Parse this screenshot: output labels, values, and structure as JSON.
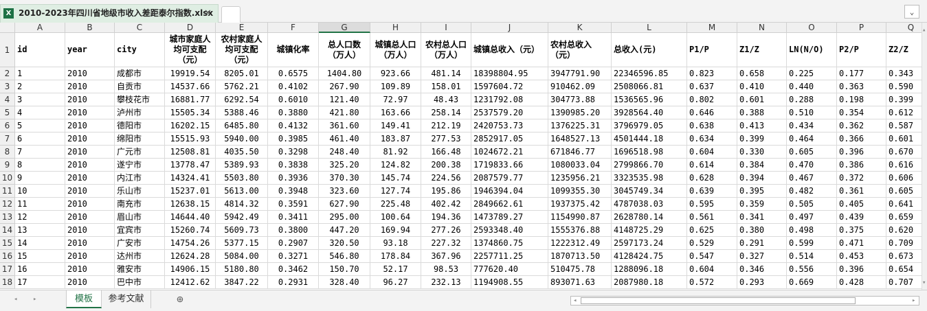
{
  "window": {
    "file_tab": "2010-2023年四川省地级市收入差距泰尔指数.xlsx",
    "file_icon": "X"
  },
  "grid": {
    "columns": [
      "A",
      "B",
      "C",
      "D",
      "E",
      "F",
      "G",
      "H",
      "I",
      "J",
      "K",
      "L",
      "M",
      "N",
      "O",
      "P",
      "Q"
    ],
    "row_numbers": [
      "1",
      "2",
      "3",
      "4",
      "5",
      "6",
      "7",
      "8",
      "9",
      "10",
      "11",
      "12",
      "13",
      "14",
      "15",
      "16",
      "17",
      "18"
    ],
    "header": [
      "id",
      "year",
      "city",
      "城市家庭人均可支配（元）",
      "农村家庭人均可支配（元）",
      "城镇化率",
      "总人口数（万人）",
      "城镇总人口（万人）",
      "农村总人口（万人）",
      "城镇总收入（元）",
      "农村总收入（元）",
      "总收入(元)",
      "P1/P",
      "Z1/Z",
      "LN(N/O)",
      "P2/P",
      "Z2/Z"
    ],
    "rows": [
      [
        "1",
        "2010",
        "成都市",
        "19919.54",
        "8205.01",
        "0.6575",
        "1404.80",
        "923.66",
        "481.14",
        "18398804.95",
        "3947791.90",
        "22346596.85",
        "0.823",
        "0.658",
        "0.225",
        "0.177",
        "0.343"
      ],
      [
        "2",
        "2010",
        "自贡市",
        "14537.66",
        "5762.21",
        "0.4102",
        "267.90",
        "109.89",
        "158.01",
        "1597604.72",
        "910462.09",
        "2508066.81",
        "0.637",
        "0.410",
        "0.440",
        "0.363",
        "0.590"
      ],
      [
        "3",
        "2010",
        "攀枝花市",
        "16881.77",
        "6292.54",
        "0.6010",
        "121.40",
        "72.97",
        "48.43",
        "1231792.08",
        "304773.88",
        "1536565.96",
        "0.802",
        "0.601",
        "0.288",
        "0.198",
        "0.399"
      ],
      [
        "4",
        "2010",
        "泸州市",
        "15505.34",
        "5388.46",
        "0.3880",
        "421.80",
        "163.66",
        "258.14",
        "2537579.20",
        "1390985.20",
        "3928564.40",
        "0.646",
        "0.388",
        "0.510",
        "0.354",
        "0.612"
      ],
      [
        "5",
        "2010",
        "德阳市",
        "16202.15",
        "6485.80",
        "0.4132",
        "361.60",
        "149.41",
        "212.19",
        "2420753.73",
        "1376225.31",
        "3796979.05",
        "0.638",
        "0.413",
        "0.434",
        "0.362",
        "0.587"
      ],
      [
        "6",
        "2010",
        "绵阳市",
        "15515.93",
        "5940.00",
        "0.3985",
        "461.40",
        "183.87",
        "277.53",
        "2852917.05",
        "1648527.13",
        "4501444.18",
        "0.634",
        "0.399",
        "0.464",
        "0.366",
        "0.601"
      ],
      [
        "7",
        "2010",
        "广元市",
        "12508.81",
        "4035.50",
        "0.3298",
        "248.40",
        "81.92",
        "166.48",
        "1024672.21",
        "671846.77",
        "1696518.98",
        "0.604",
        "0.330",
        "0.605",
        "0.396",
        "0.670"
      ],
      [
        "8",
        "2010",
        "遂宁市",
        "13778.47",
        "5389.93",
        "0.3838",
        "325.20",
        "124.82",
        "200.38",
        "1719833.66",
        "1080033.04",
        "2799866.70",
        "0.614",
        "0.384",
        "0.470",
        "0.386",
        "0.616"
      ],
      [
        "9",
        "2010",
        "内江市",
        "14324.41",
        "5503.80",
        "0.3936",
        "370.30",
        "145.74",
        "224.56",
        "2087579.77",
        "1235956.21",
        "3323535.98",
        "0.628",
        "0.394",
        "0.467",
        "0.372",
        "0.606"
      ],
      [
        "10",
        "2010",
        "乐山市",
        "15237.01",
        "5613.00",
        "0.3948",
        "323.60",
        "127.74",
        "195.86",
        "1946394.04",
        "1099355.30",
        "3045749.34",
        "0.639",
        "0.395",
        "0.482",
        "0.361",
        "0.605"
      ],
      [
        "11",
        "2010",
        "南充市",
        "12638.15",
        "4814.32",
        "0.3591",
        "627.90",
        "225.48",
        "402.42",
        "2849662.61",
        "1937375.42",
        "4787038.03",
        "0.595",
        "0.359",
        "0.505",
        "0.405",
        "0.641"
      ],
      [
        "12",
        "2010",
        "眉山市",
        "14644.40",
        "5942.49",
        "0.3411",
        "295.00",
        "100.64",
        "194.36",
        "1473789.27",
        "1154990.87",
        "2628780.14",
        "0.561",
        "0.341",
        "0.497",
        "0.439",
        "0.659"
      ],
      [
        "13",
        "2010",
        "宜宾市",
        "15260.74",
        "5609.73",
        "0.3800",
        "447.20",
        "169.94",
        "277.26",
        "2593348.40",
        "1555376.88",
        "4148725.29",
        "0.625",
        "0.380",
        "0.498",
        "0.375",
        "0.620"
      ],
      [
        "14",
        "2010",
        "广安市",
        "14754.26",
        "5377.15",
        "0.2907",
        "320.50",
        "93.18",
        "227.32",
        "1374860.75",
        "1222312.49",
        "2597173.24",
        "0.529",
        "0.291",
        "0.599",
        "0.471",
        "0.709"
      ],
      [
        "15",
        "2010",
        "达州市",
        "12624.28",
        "5084.00",
        "0.3271",
        "546.80",
        "178.84",
        "367.96",
        "2257711.25",
        "1870713.50",
        "4128424.75",
        "0.547",
        "0.327",
        "0.514",
        "0.453",
        "0.673"
      ],
      [
        "16",
        "2010",
        "雅安市",
        "14906.15",
        "5180.80",
        "0.3462",
        "150.70",
        "52.17",
        "98.53",
        "777620.40",
        "510475.78",
        "1288096.18",
        "0.604",
        "0.346",
        "0.556",
        "0.396",
        "0.654"
      ],
      [
        "17",
        "2010",
        "巴中市",
        "12412.62",
        "3847.22",
        "0.2931",
        "328.40",
        "96.27",
        "232.13",
        "1194908.55",
        "893071.63",
        "2087980.18",
        "0.572",
        "0.293",
        "0.669",
        "0.428",
        "0.707"
      ]
    ]
  },
  "sheets": {
    "tabs": [
      "模板",
      "参考文献"
    ],
    "add": "⊕"
  }
}
